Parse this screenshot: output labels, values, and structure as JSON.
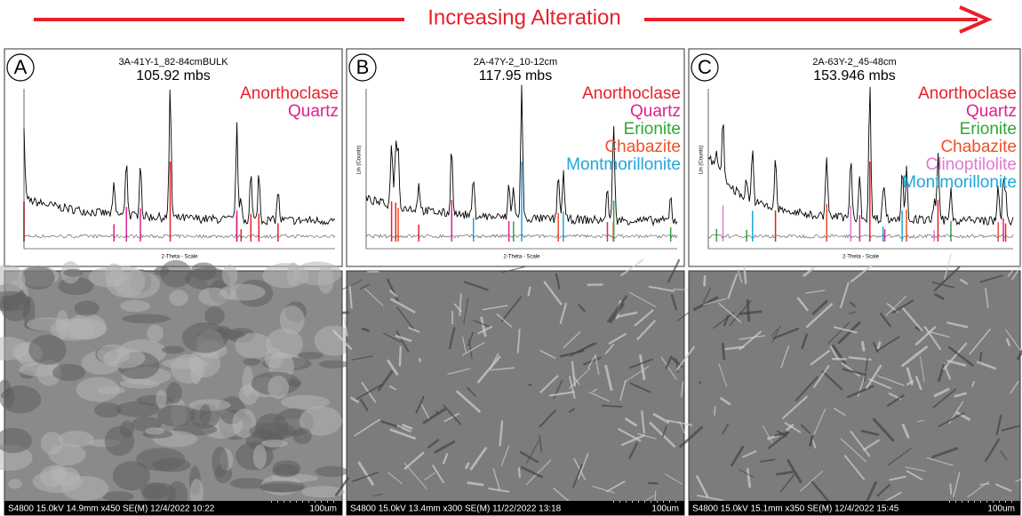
{
  "header": {
    "title": "Increasing Alteration"
  },
  "panels": [
    {
      "letter": "A",
      "sample": "3A-41Y-1_82-84cmBULK",
      "depth": "105.92 mbs",
      "minerals": [
        {
          "name": "Anorthoclase",
          "color": "#e8202a"
        },
        {
          "name": "Quartz",
          "color": "#e0208f"
        }
      ],
      "x_axis_label": "2-Theta - Scale",
      "sem": {
        "info": "S4800 15.0kV 14.9mm x450 SE(M) 12/4/2022 10:22",
        "scale": "100um"
      }
    },
    {
      "letter": "B",
      "sample": "2A-47Y-2_10-12cm",
      "depth": "117.95 mbs",
      "minerals": [
        {
          "name": "Anorthoclase",
          "color": "#e8202a"
        },
        {
          "name": "Quartz",
          "color": "#e0208f"
        },
        {
          "name": "Erionite",
          "color": "#2ea836"
        },
        {
          "name": "Chabazite",
          "color": "#f0502a"
        },
        {
          "name": "Montmorillonite",
          "color": "#1ea6dc"
        }
      ],
      "x_axis_label": "2-Theta - Scale",
      "y_axis_label": "Lin (Counts)",
      "sem": {
        "info": "S4800 15.0kV 13.4mm x300 SE(M) 11/22/2022 13:18",
        "scale": "100um"
      }
    },
    {
      "letter": "C",
      "sample": "2A-63Y-2_45-48cm",
      "depth": "153.946 mbs",
      "minerals": [
        {
          "name": "Anorthoclase",
          "color": "#e8202a"
        },
        {
          "name": "Quartz",
          "color": "#e0208f"
        },
        {
          "name": "Erionite",
          "color": "#2ea836"
        },
        {
          "name": "Chabazite",
          "color": "#f0502a"
        },
        {
          "name": "Clinoptilolite",
          "color": "#e07ad0"
        },
        {
          "name": "Montmorillonite",
          "color": "#1ea6dc"
        }
      ],
      "x_axis_label": "2-Theta - Scale",
      "y_axis_label": "Lin (Counts)",
      "sem": {
        "info": "S4800 15.0kV 15.1mm x350 SE(M) 12/4/2022 15:45",
        "scale": "100um"
      }
    }
  ]
}
